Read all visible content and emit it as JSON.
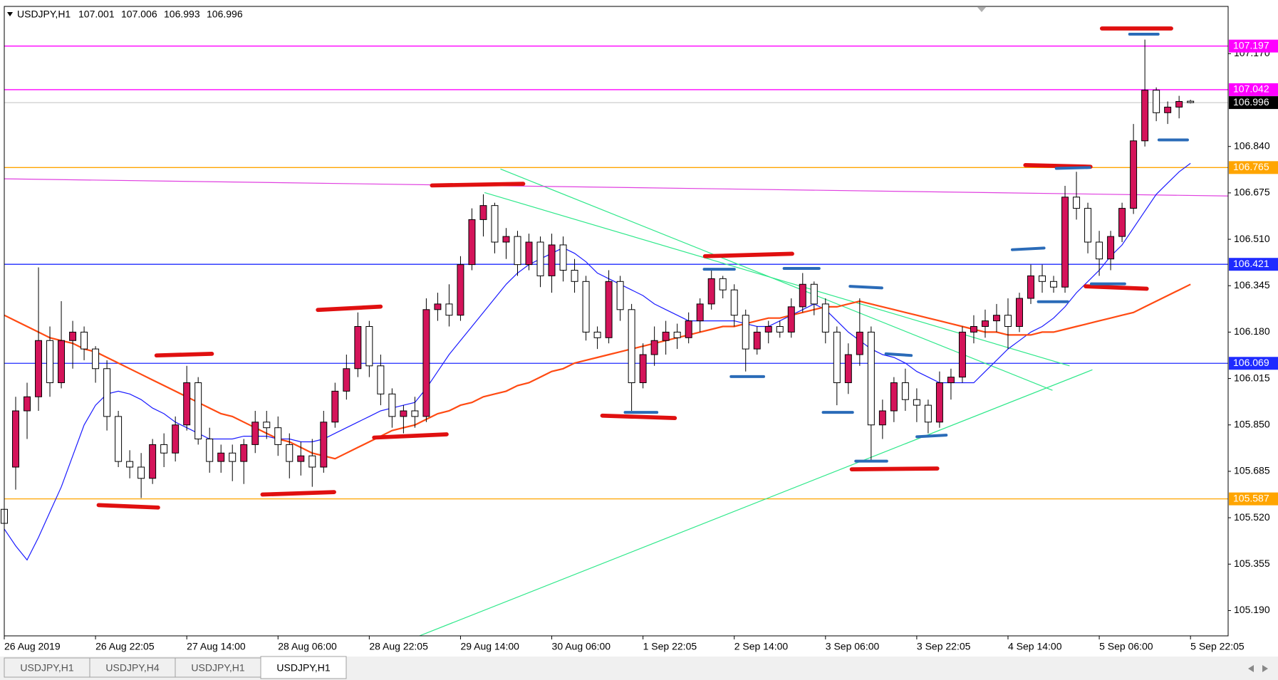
{
  "chart_data": {
    "type": "candlestick",
    "symbol": "USDJPY,H1",
    "up_color": "#d4145a",
    "down_color": "#ffffff",
    "xlim": [
      0,
      107.3
    ],
    "ylim": [
      105.1,
      107.338
    ],
    "yticks": [
      {
        "value": 107.17,
        "label": "107.170"
      },
      {
        "value": 106.84,
        "label": "106.840"
      },
      106.675,
      {
        "value": 106.51,
        "label": "106.510"
      },
      106.345,
      {
        "value": 106.18,
        "label": "106.180"
      },
      106.015,
      {
        "value": 105.85,
        "label": "105.850"
      },
      105.685,
      {
        "value": 105.52,
        "label": "105.520"
      },
      105.355,
      {
        "value": 105.19,
        "label": "105.190"
      }
    ],
    "xticks": [
      {
        "value": 0,
        "label": "26 Aug 2019"
      },
      {
        "value": 8,
        "label": "26 Aug 22:05"
      },
      {
        "value": 16,
        "label": "27 Aug 14:00"
      },
      {
        "value": 24,
        "label": "28 Aug 06:00"
      },
      {
        "value": 32,
        "label": "28 Aug 22:05"
      },
      {
        "value": 40,
        "label": "29 Aug 14:00"
      },
      {
        "value": 48,
        "label": "30 Aug 06:00"
      },
      {
        "value": 56,
        "label": "1 Sep 22:05"
      },
      {
        "value": 64,
        "label": "2 Sep 14:00"
      },
      {
        "value": 72,
        "label": "3 Sep 06:00"
      },
      {
        "value": 80,
        "label": "3 Sep 22:05"
      },
      {
        "value": 88,
        "label": "4 Sep 14:00"
      },
      {
        "value": 96,
        "label": "5 Sep 06:00"
      },
      {
        "value": 104,
        "label": "5 Sep 22:05"
      }
    ],
    "levels": [
      {
        "value": 107.197,
        "color": "#ff00ff"
      },
      {
        "value": 107.042,
        "color": "#ff00ff"
      },
      {
        "value": 106.765,
        "color": "#ffa500"
      },
      {
        "value": 106.421,
        "color": "#1f2bff"
      },
      {
        "value": 106.069,
        "color": "#1f2bff"
      },
      {
        "value": 105.587,
        "color": "#ffa500"
      }
    ],
    "trendlines": [
      {
        "x": [
          42.1,
          93.4
        ],
        "y": [
          106.676,
          106.06
        ],
        "color": "#2ee88a"
      },
      {
        "x": [
          43.5,
          91.9
        ],
        "y": [
          106.76,
          105.973
        ],
        "color": "#2ee88a"
      },
      {
        "x": [
          36.4,
          95.4
        ],
        "y": [
          105.1,
          106.046
        ],
        "color": "#2ee88a"
      },
      {
        "x": [
          0,
          107.3
        ],
        "y": [
          106.725,
          106.664
        ],
        "color": "#e040e0"
      }
    ],
    "moving_averages": [
      {
        "color": "#1a1aff",
        "values": [
          105.48,
          105.42,
          105.37,
          105.45,
          105.54,
          105.63,
          105.74,
          105.85,
          105.92,
          105.96,
          105.97,
          105.96,
          105.94,
          105.91,
          105.89,
          105.86,
          105.84,
          105.82,
          105.8,
          105.8,
          105.8,
          105.81,
          105.81,
          105.81,
          105.8,
          105.8,
          105.79,
          105.79,
          105.8,
          105.82,
          105.84,
          105.86,
          105.88,
          105.9,
          105.91,
          105.92,
          105.93,
          105.98,
          106.04,
          106.1,
          106.15,
          106.2,
          106.25,
          106.3,
          106.35,
          106.39,
          106.42,
          106.44,
          106.46,
          106.48,
          106.46,
          106.43,
          106.39,
          106.37,
          106.35,
          106.33,
          106.31,
          106.28,
          106.26,
          106.24,
          106.22,
          106.22,
          106.22,
          106.22,
          106.22,
          106.21,
          106.2,
          106.2,
          106.22,
          106.24,
          106.26,
          106.28,
          106.26,
          106.22,
          106.18,
          106.15,
          106.12,
          106.1,
          106.09,
          106.07,
          106.04,
          106.02,
          106.0,
          106.0,
          106.0,
          106.0,
          106.04,
          106.08,
          106.12,
          106.15,
          106.18,
          106.2,
          106.23,
          106.27,
          106.32,
          106.36,
          106.4,
          106.45,
          106.49,
          106.55,
          106.61,
          106.67,
          106.71,
          106.75,
          106.78
        ]
      },
      {
        "color": "#ff4a12",
        "values": [
          106.24,
          106.22,
          106.2,
          106.18,
          106.16,
          106.15,
          106.14,
          106.12,
          106.11,
          106.09,
          106.07,
          106.05,
          106.03,
          106.01,
          105.99,
          105.97,
          105.95,
          105.93,
          105.91,
          105.89,
          105.88,
          105.86,
          105.84,
          105.82,
          105.8,
          105.79,
          105.77,
          105.75,
          105.74,
          105.73,
          105.75,
          105.77,
          105.79,
          105.81,
          105.83,
          105.84,
          105.85,
          105.87,
          105.89,
          105.9,
          105.92,
          105.93,
          105.95,
          105.96,
          105.97,
          105.99,
          106.0,
          106.02,
          106.04,
          106.05,
          106.07,
          106.08,
          106.09,
          106.1,
          106.11,
          106.12,
          106.13,
          106.14,
          106.15,
          106.16,
          106.17,
          106.18,
          106.19,
          106.2,
          106.2,
          106.21,
          106.22,
          106.23,
          106.23,
          106.24,
          106.25,
          106.26,
          106.27,
          106.27,
          106.28,
          106.29,
          106.28,
          106.27,
          106.26,
          106.25,
          106.24,
          106.23,
          106.22,
          106.21,
          106.2,
          106.19,
          106.18,
          106.18,
          106.17,
          106.17,
          106.17,
          106.18,
          106.18,
          106.19,
          106.2,
          106.21,
          106.22,
          106.23,
          106.24,
          106.25,
          106.27,
          106.29,
          106.31,
          106.33,
          106.35
        ]
      }
    ],
    "candles": [
      [
        105.55,
        105.59,
        105.15,
        105.5
      ],
      [
        105.7,
        105.95,
        105.62,
        105.9
      ],
      [
        105.9,
        106.0,
        105.8,
        105.95
      ],
      [
        105.95,
        106.41,
        105.9,
        106.15
      ],
      [
        106.15,
        106.2,
        105.95,
        106.0
      ],
      [
        106.0,
        106.29,
        105.98,
        106.15
      ],
      [
        106.15,
        106.22,
        106.05,
        106.18
      ],
      [
        106.18,
        106.2,
        106.08,
        106.12
      ],
      [
        106.12,
        106.13,
        106.0,
        106.05
      ],
      [
        106.05,
        106.08,
        105.83,
        105.88
      ],
      [
        105.88,
        105.9,
        105.7,
        105.72
      ],
      [
        105.72,
        105.76,
        105.66,
        105.7
      ],
      [
        105.7,
        105.75,
        105.59,
        105.66
      ],
      [
        105.66,
        105.8,
        105.64,
        105.78
      ],
      [
        105.78,
        105.82,
        105.7,
        105.75
      ],
      [
        105.75,
        105.88,
        105.72,
        105.85
      ],
      [
        105.85,
        106.06,
        105.83,
        106.0
      ],
      [
        106.0,
        106.02,
        105.78,
        105.8
      ],
      [
        105.8,
        105.84,
        105.68,
        105.72
      ],
      [
        105.72,
        105.78,
        105.68,
        105.75
      ],
      [
        105.75,
        105.78,
        105.65,
        105.72
      ],
      [
        105.72,
        105.8,
        105.64,
        105.78
      ],
      [
        105.78,
        105.9,
        105.75,
        105.86
      ],
      [
        105.86,
        105.9,
        105.8,
        105.84
      ],
      [
        105.84,
        105.88,
        105.74,
        105.78
      ],
      [
        105.78,
        105.82,
        105.66,
        105.72
      ],
      [
        105.72,
        105.79,
        105.67,
        105.74
      ],
      [
        105.74,
        105.8,
        105.63,
        105.7
      ],
      [
        105.7,
        105.9,
        105.68,
        105.86
      ],
      [
        105.86,
        106.0,
        105.84,
        105.97
      ],
      [
        105.97,
        106.1,
        105.94,
        106.05
      ],
      [
        106.05,
        106.25,
        106.02,
        106.2
      ],
      [
        106.2,
        106.22,
        106.02,
        106.06
      ],
      [
        106.06,
        106.1,
        105.92,
        105.96
      ],
      [
        105.96,
        105.98,
        105.84,
        105.88
      ],
      [
        105.88,
        105.92,
        105.82,
        105.9
      ],
      [
        105.9,
        105.95,
        105.84,
        105.88
      ],
      [
        105.88,
        106.3,
        105.86,
        106.26
      ],
      [
        106.26,
        106.32,
        106.22,
        106.28
      ],
      [
        106.28,
        106.35,
        106.2,
        106.24
      ],
      [
        106.24,
        106.45,
        106.22,
        106.42
      ],
      [
        106.42,
        106.62,
        106.4,
        106.58
      ],
      [
        106.58,
        106.67,
        106.52,
        106.63
      ],
      [
        106.63,
        106.64,
        106.46,
        106.5
      ],
      [
        106.5,
        106.55,
        106.44,
        106.52
      ],
      [
        106.52,
        106.54,
        106.38,
        106.42
      ],
      [
        106.42,
        106.53,
        106.4,
        106.5
      ],
      [
        106.5,
        106.52,
        106.34,
        106.38
      ],
      [
        106.38,
        106.53,
        106.32,
        106.49
      ],
      [
        106.49,
        106.52,
        106.36,
        106.4
      ],
      [
        106.4,
        106.44,
        106.32,
        106.36
      ],
      [
        106.36,
        106.38,
        106.15,
        106.18
      ],
      [
        106.18,
        106.2,
        106.12,
        106.16
      ],
      [
        106.16,
        106.4,
        106.14,
        106.36
      ],
      [
        106.36,
        106.38,
        106.22,
        106.26
      ],
      [
        106.26,
        106.28,
        105.9,
        106.0
      ],
      [
        106.0,
        106.14,
        105.98,
        106.1
      ],
      [
        106.1,
        106.2,
        106.06,
        106.15
      ],
      [
        106.15,
        106.22,
        106.1,
        106.18
      ],
      [
        106.18,
        106.21,
        106.12,
        106.16
      ],
      [
        106.16,
        106.25,
        106.14,
        106.22
      ],
      [
        106.22,
        106.3,
        106.18,
        106.28
      ],
      [
        106.28,
        106.4,
        106.26,
        106.37
      ],
      [
        106.37,
        106.38,
        106.3,
        106.33
      ],
      [
        106.33,
        106.35,
        106.2,
        106.24
      ],
      [
        106.24,
        106.26,
        106.04,
        106.12
      ],
      [
        106.12,
        106.2,
        106.1,
        106.18
      ],
      [
        106.18,
        106.22,
        106.14,
        106.2
      ],
      [
        106.2,
        106.22,
        106.16,
        106.18
      ],
      [
        106.18,
        106.3,
        106.16,
        106.27
      ],
      [
        106.27,
        106.39,
        106.25,
        106.35
      ],
      [
        106.35,
        106.36,
        106.24,
        106.28
      ],
      [
        106.28,
        106.3,
        106.14,
        106.18
      ],
      [
        106.18,
        106.2,
        105.92,
        106.0
      ],
      [
        106.0,
        106.14,
        105.96,
        106.1
      ],
      [
        106.1,
        106.3,
        106.06,
        106.18
      ],
      [
        106.18,
        106.2,
        105.72,
        105.85
      ],
      [
        105.85,
        105.94,
        105.8,
        105.9
      ],
      [
        105.9,
        106.02,
        105.86,
        106.0
      ],
      [
        106.0,
        106.05,
        105.9,
        105.94
      ],
      [
        105.94,
        105.98,
        105.86,
        105.92
      ],
      [
        105.92,
        105.94,
        105.82,
        105.86
      ],
      [
        105.86,
        106.04,
        105.84,
        106.0
      ],
      [
        106.0,
        106.05,
        105.94,
        106.02
      ],
      [
        106.02,
        106.2,
        106.0,
        106.18
      ],
      [
        106.18,
        106.24,
        106.14,
        106.2
      ],
      [
        106.2,
        106.26,
        106.16,
        106.22
      ],
      [
        106.22,
        106.28,
        106.18,
        106.24
      ],
      [
        106.24,
        106.3,
        106.12,
        106.2
      ],
      [
        106.2,
        106.32,
        106.18,
        106.3
      ],
      [
        106.3,
        106.42,
        106.28,
        106.38
      ],
      [
        106.38,
        106.42,
        106.32,
        106.36
      ],
      [
        106.36,
        106.38,
        106.32,
        106.34
      ],
      [
        106.34,
        106.7,
        106.32,
        106.66
      ],
      [
        106.66,
        106.75,
        106.58,
        106.62
      ],
      [
        106.62,
        106.64,
        106.46,
        106.5
      ],
      [
        106.5,
        106.54,
        106.38,
        106.44
      ],
      [
        106.44,
        106.54,
        106.4,
        106.52
      ],
      [
        106.52,
        106.64,
        106.5,
        106.62
      ],
      [
        106.62,
        106.92,
        106.6,
        106.86
      ],
      [
        106.86,
        107.22,
        106.84,
        107.04
      ],
      [
        107.04,
        107.05,
        106.93,
        106.96
      ],
      [
        106.96,
        107.0,
        106.92,
        106.98
      ],
      [
        106.98,
        107.02,
        106.94,
        107.0
      ],
      [
        107.001,
        107.006,
        106.993,
        106.996
      ]
    ],
    "tabs": [
      "USDJPY,H1",
      "USDJPY,H4",
      "USDJPY,H1",
      "USDJPY,H1"
    ],
    "active_tab": 3
  }
}
